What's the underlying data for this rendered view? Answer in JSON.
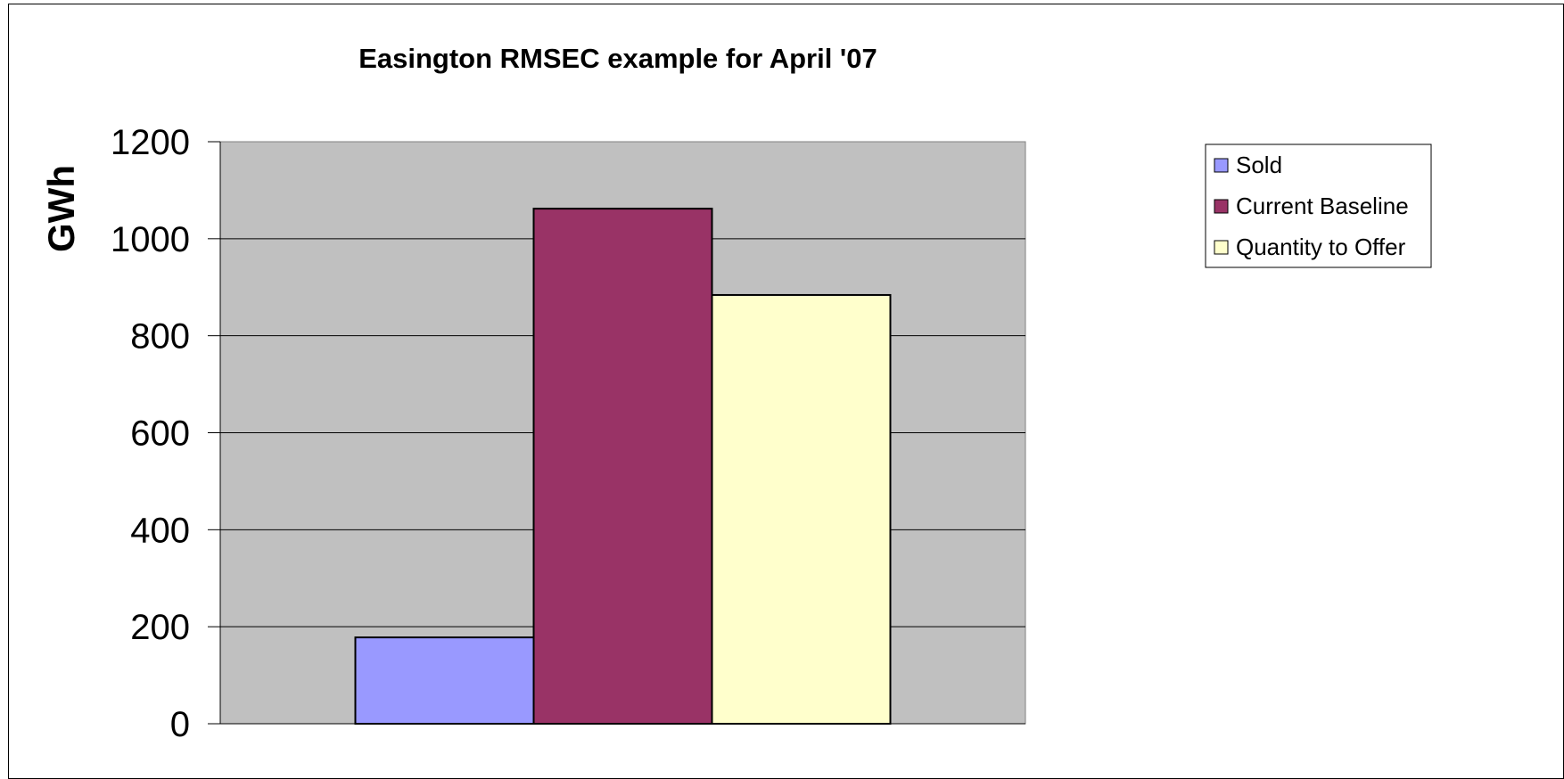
{
  "chart_data": {
    "type": "bar",
    "title": "Easington RMSEC example for April '07",
    "xlabel": "",
    "ylabel": "GWh",
    "ylim": [
      0,
      1200
    ],
    "yticks": [
      0,
      200,
      400,
      600,
      800,
      1000,
      1200
    ],
    "grid": true,
    "legend_position": "right",
    "categories": [
      ""
    ],
    "series": [
      {
        "name": "Sold",
        "values": [
          178
        ],
        "color": "#9999ff"
      },
      {
        "name": "Current Baseline",
        "values": [
          1062
        ],
        "color": "#993366"
      },
      {
        "name": "Quantity to Offer",
        "values": [
          884
        ],
        "color": "#ffffcc"
      }
    ],
    "plot_background": "#c0c0c0"
  }
}
